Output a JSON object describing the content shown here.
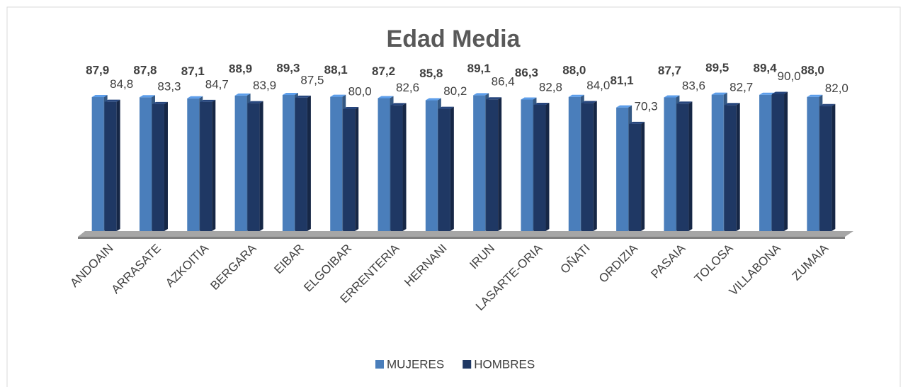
{
  "chart_data": {
    "type": "bar3d",
    "title": "Edad Media",
    "categories": [
      "ANDOAIN",
      "ARRASATE",
      "AZKOITIA",
      "BERGARA",
      "EIBAR",
      "ELGOIBAR",
      "ERRENTERIA",
      "HERNANI",
      "IRUN",
      "LASARTE-ORIA",
      "OÑATI",
      "ORDIZIA",
      "PASAIA",
      "TOLOSA",
      "VILLABONA",
      "ZUMAIA"
    ],
    "series": [
      {
        "name": "MUJERES",
        "color": "#4a7ebb",
        "values": [
          87.9,
          87.8,
          87.1,
          88.9,
          89.3,
          88.1,
          87.2,
          85.8,
          89.1,
          86.3,
          88.0,
          81.1,
          87.7,
          89.5,
          89.4,
          88.0
        ],
        "value_labels": [
          "87,9",
          "87,8",
          "87,1",
          "88,9",
          "89,3",
          "88,1",
          "87,2",
          "85,8",
          "89,1",
          "86,3",
          "88,0",
          "81,1",
          "87,7",
          "89,5",
          "89,4",
          "88,0"
        ]
      },
      {
        "name": "HOMBRES",
        "color": "#1f3864",
        "values": [
          84.8,
          83.3,
          84.7,
          83.9,
          87.5,
          80.0,
          82.6,
          80.2,
          86.4,
          82.8,
          84.0,
          70.3,
          83.6,
          82.7,
          90.0,
          82.0
        ],
        "value_labels": [
          "84,8",
          "83,3",
          "84,7",
          "83,9",
          "87,5",
          "80,0",
          "82,6",
          "80,2",
          "86,4",
          "82,8",
          "84,0",
          "70,3",
          "83,6",
          "82,7",
          "90,0",
          "82,0"
        ]
      }
    ],
    "ylim": [
      0,
      100
    ]
  }
}
